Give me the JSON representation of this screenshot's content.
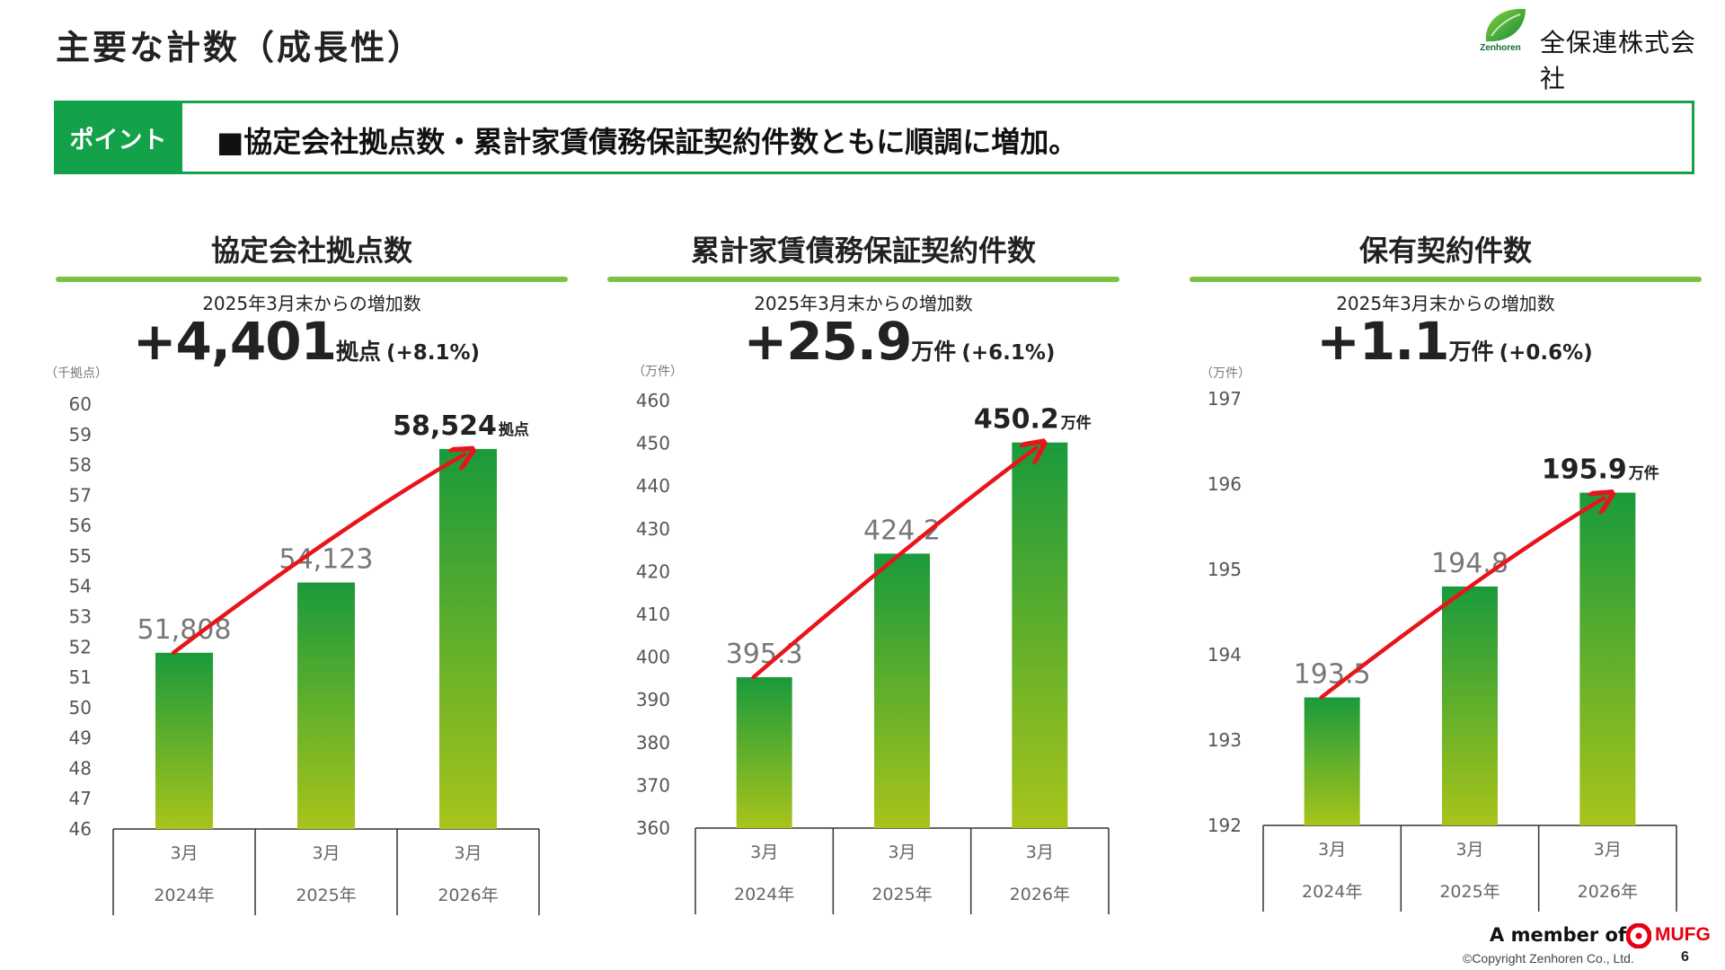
{
  "page": {
    "title": "主要な計数（成長性）",
    "page_number": "6"
  },
  "logo": {
    "sub": "Zenhoren",
    "name": "全保連株式会社"
  },
  "point": {
    "label": "ポイント",
    "text": "■協定会社拠点数・累計家賃債務保証契約件数ともに順調に増加。"
  },
  "footer": {
    "member": "A member of",
    "mufg": "MUFG",
    "copyright": "©Copyright Zenhoren Co., Ltd."
  },
  "colors": {
    "brand_green": "#13a14a",
    "rule_green": "#7cc242",
    "bar_top": "#1a9a3c",
    "bar_bottom": "#a8c41a",
    "arrow_red": "#e8141c"
  },
  "panels": [
    {
      "title": "協定会社拠点数",
      "subtitle": "2025年3月末からの増加数",
      "increase_value": "+4,401",
      "increase_unit": "拠点",
      "increase_pct": "(+8.1%)"
    },
    {
      "title": "累計家賃債務保証契約件数",
      "subtitle": "2025年3月末からの増加数",
      "increase_value": "+25.9",
      "increase_unit": "万件",
      "increase_pct": "(+6.1%)"
    },
    {
      "title": "保有契約件数",
      "subtitle": "2025年3月末からの増加数",
      "increase_value": "+1.1",
      "increase_unit": "万件",
      "increase_pct": "(+0.6%)"
    }
  ],
  "chart_data": [
    {
      "type": "bar",
      "title": "協定会社拠点数",
      "ylabel": "（千拠点）",
      "ylim": [
        46,
        60
      ],
      "yticks": [
        60,
        59,
        58,
        57,
        56,
        55,
        54,
        53,
        52,
        51,
        50,
        49,
        48,
        47,
        46
      ],
      "categories": [
        [
          "3月",
          "2024年"
        ],
        [
          "3月",
          "2025年"
        ],
        [
          "3月",
          "2026年"
        ]
      ],
      "values": [
        51.808,
        54.123,
        58.524
      ],
      "value_labels": [
        "51,808",
        "54,123",
        "58,524"
      ],
      "last_label_unit": "拠点",
      "trend_arrow": true
    },
    {
      "type": "bar",
      "title": "累計家賃債務保証契約件数",
      "ylabel": "（万件）",
      "ylim": [
        360,
        460
      ],
      "yticks": [
        460,
        450,
        440,
        430,
        420,
        410,
        400,
        390,
        380,
        370,
        360
      ],
      "categories": [
        [
          "3月",
          "2024年"
        ],
        [
          "3月",
          "2025年"
        ],
        [
          "3月",
          "2026年"
        ]
      ],
      "values": [
        395.3,
        424.2,
        450.2
      ],
      "value_labels": [
        "395.3",
        "424.2",
        "450.2"
      ],
      "last_label_unit": "万件",
      "trend_arrow": true
    },
    {
      "type": "bar",
      "title": "保有契約件数",
      "ylabel": "（万件）",
      "ylim": [
        192,
        197
      ],
      "yticks": [
        197,
        196,
        195,
        194,
        193,
        192
      ],
      "categories": [
        [
          "3月",
          "2024年"
        ],
        [
          "3月",
          "2025年"
        ],
        [
          "3月",
          "2026年"
        ]
      ],
      "values": [
        193.5,
        194.8,
        195.9
      ],
      "value_labels": [
        "193.5",
        "194.8",
        "195.9"
      ],
      "last_label_unit": "万件",
      "trend_arrow": true
    }
  ]
}
